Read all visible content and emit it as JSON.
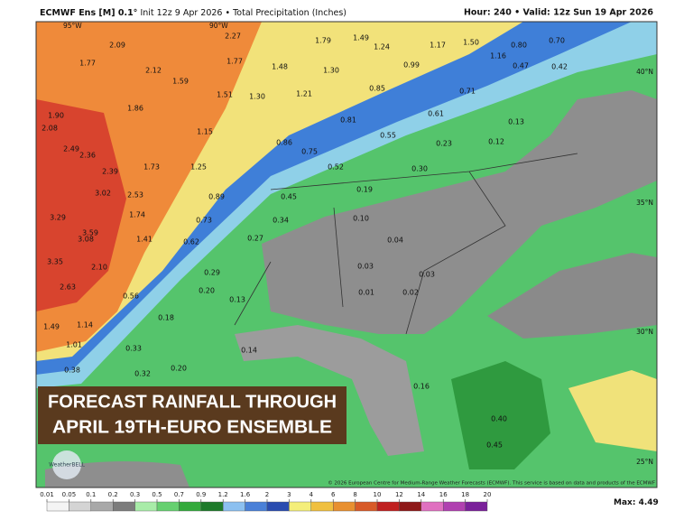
{
  "header": {
    "model": "ECMWF Ens [M] 0.1°",
    "info": "Init 12z 9 Apr 2026 • Total Precipitation (Inches)",
    "valid": "Hour: 240 • Valid: 12z Sun 19 Apr 2026"
  },
  "banner": [
    "FORECAST RAINFALL THROUGH",
    "APRIL 19TH-EURO ENSEMBLE"
  ],
  "logo": "WeatherBELL",
  "copyright": "© 2026 European Centre for Medium-Range Weather Forecasts (ECMWF). This service is based on data and products of the ECMWF",
  "max": {
    "label": "Max:",
    "value": 4.49
  },
  "geo_labels": [
    "95°W",
    "90°W",
    "40°N",
    "35°N",
    "30°N",
    "25°N"
  ],
  "colorbar": {
    "ticks": [
      0.01,
      0.05,
      0.1,
      0.2,
      0.3,
      0.5,
      0.7,
      0.9,
      1.2,
      1.6,
      2,
      3,
      4,
      6,
      8,
      10,
      12,
      14,
      16,
      18,
      20
    ],
    "colors": [
      "#f4f4f4",
      "#d4d4d4",
      "#a8a8a8",
      "#7c7c7c",
      "#a8ecA8",
      "#66d070",
      "#34aa3c",
      "#1e7a2a",
      "#8cc0f0",
      "#4a80d8",
      "#2a4cb0",
      "#f4ee7a",
      "#f0c040",
      "#e89030",
      "#d85a28",
      "#c02020",
      "#8e1818",
      "#e070c0",
      "#b040b0",
      "#7a209a"
    ]
  },
  "precip": {
    "values": [
      2.09,
      2.27,
      1.79,
      1.49,
      1.24,
      1.17,
      1.5,
      0.8,
      0.7,
      1.77,
      2.12,
      1.77,
      1.48,
      1.3,
      0.99,
      1.16,
      0.47,
      0.42,
      1.59,
      1.21,
      0.85,
      0.71,
      1.9,
      1.86,
      1.51,
      1.3,
      0.81,
      0.61,
      0.13,
      2.08,
      1.15,
      0.86,
      0.55,
      2.49,
      2.36,
      0.75,
      0.23,
      0.12,
      2.39,
      1.73,
      1.25,
      0.52,
      0.3,
      3.02,
      2.53,
      0.89,
      0.45,
      0.19,
      3.29,
      3.59,
      1.74,
      0.73,
      0.34,
      0.1,
      3.08,
      1.41,
      0.62,
      0.27,
      0.04,
      3.35,
      2.1,
      0.29,
      0.03,
      0.03,
      2.63,
      0.56,
      0.2,
      0.13,
      0.01,
      0.02,
      1.49,
      1.14,
      0.18,
      1.01,
      0.33,
      0.14,
      0.38,
      0.32,
      0.2,
      0.16,
      0.4,
      0.45
    ],
    "value_labels": [
      "2.09",
      "2.27",
      "1.79",
      "1.49",
      "1.24",
      "1.17",
      "1.50",
      "0.80",
      "0.70",
      "1.77",
      "2.12",
      "1.77",
      "1.48",
      "1.30",
      "0.99",
      "1.16",
      "0.47",
      "0.42",
      "1.59",
      "1.21",
      "0.85",
      "0.71",
      "1.90",
      "1.86",
      "1.51",
      "1.30",
      "0.81",
      "0.61",
      "0.13",
      "2.08",
      "1.15",
      "0.86",
      "0.55",
      "2.49",
      "2.36",
      "0.75",
      "0.23",
      "0.12",
      "2.39",
      "1.73",
      "1.25",
      "0.52",
      "0.30",
      "3.02",
      "2.53",
      "0.89",
      "0.45",
      "0.19",
      "3.29",
      "3.59",
      "1.74",
      "0.73",
      "0.34",
      "0.10",
      "3.08",
      "1.41",
      "0.62",
      "0.27",
      "0.04",
      "3.35",
      "2.10",
      "0.29",
      "0.03",
      "0.03",
      "2.63",
      "0.56",
      "0.20",
      "0.13",
      "0.01",
      "0.02",
      "1.49",
      "1.14",
      "0.18",
      "1.01",
      "0.33",
      "0.14",
      "0.38",
      "0.32",
      "0.20",
      "0.16",
      "0.40",
      "0.45"
    ]
  }
}
